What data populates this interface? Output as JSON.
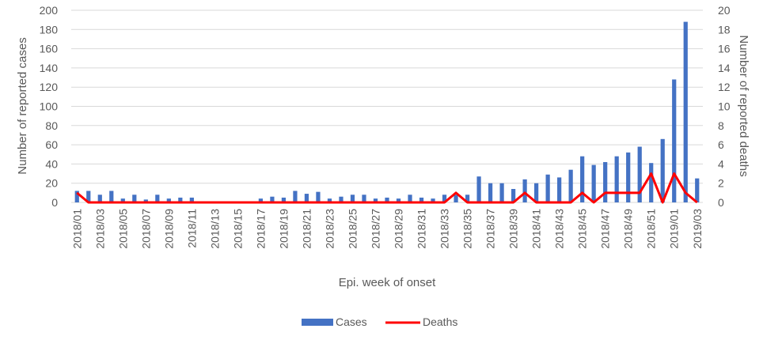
{
  "chart_data": {
    "type": "bar",
    "xlabel": "Epi. week of onset",
    "ylabel": "Number of reported cases",
    "y2label": "Number of reported deaths",
    "ylim": [
      0,
      200
    ],
    "y2lim": [
      0,
      20
    ],
    "yticks": [
      0,
      20,
      40,
      60,
      80,
      100,
      120,
      140,
      160,
      180,
      200
    ],
    "y2ticks": [
      0,
      2,
      4,
      6,
      8,
      10,
      12,
      14,
      16,
      18,
      20
    ],
    "grid": true,
    "legend": "bottom",
    "categories": [
      "2018/01",
      "2018/02",
      "2018/03",
      "2018/04",
      "2018/05",
      "2018/06",
      "2018/07",
      "2018/08",
      "2018/09",
      "2018/10",
      "2018/11",
      "2018/12",
      "2018/13",
      "2018/14",
      "2018/15",
      "2018/16",
      "2018/17",
      "2018/18",
      "2018/19",
      "2018/20",
      "2018/21",
      "2018/22",
      "2018/23",
      "2018/24",
      "2018/25",
      "2018/26",
      "2018/27",
      "2018/28",
      "2018/29",
      "2018/30",
      "2018/31",
      "2018/32",
      "2018/33",
      "2018/34",
      "2018/35",
      "2018/36",
      "2018/37",
      "2018/38",
      "2018/39",
      "2018/40",
      "2018/41",
      "2018/42",
      "2018/43",
      "2018/44",
      "2018/45",
      "2018/46",
      "2018/47",
      "2018/48",
      "2018/49",
      "2018/50",
      "2018/51",
      "2018/52",
      "2019/01",
      "2019/02",
      "2019/03"
    ],
    "tick_labels": [
      "2018/01",
      "2018/03",
      "2018/05",
      "2018/07",
      "2018/09",
      "2018/11",
      "2018/13",
      "2018/15",
      "2018/17",
      "2018/19",
      "2018/21",
      "2018/23",
      "2018/25",
      "2018/27",
      "2018/29",
      "2018/31",
      "2018/33",
      "2018/35",
      "2018/37",
      "2018/39",
      "2018/41",
      "2018/43",
      "2018/45",
      "2018/47",
      "2018/49",
      "2018/51",
      "2019/01",
      "2019/03"
    ],
    "series": [
      {
        "name": "Cases",
        "type": "bar",
        "color": "#4472C4",
        "values": [
          12,
          12,
          8,
          12,
          4,
          8,
          3,
          8,
          4,
          5,
          5,
          0,
          0,
          0,
          0,
          0,
          4,
          6,
          5,
          12,
          9,
          11,
          4,
          6,
          8,
          8,
          4,
          5,
          4,
          8,
          5,
          4,
          8,
          8,
          8,
          27,
          20,
          20,
          14,
          24,
          20,
          29,
          26,
          34,
          48,
          39,
          42,
          48,
          52,
          58,
          41,
          66,
          128,
          188,
          25
        ]
      },
      {
        "name": "Deaths",
        "type": "line",
        "color": "#FF0000",
        "values": [
          1,
          0,
          0,
          0,
          0,
          0,
          0,
          0,
          0,
          0,
          0,
          0,
          0,
          0,
          0,
          0,
          0,
          0,
          0,
          0,
          0,
          0,
          0,
          0,
          0,
          0,
          0,
          0,
          0,
          0,
          0,
          0,
          0,
          1,
          0,
          0,
          0,
          0,
          0,
          1,
          0,
          0,
          0,
          0,
          1,
          0,
          1,
          1,
          1,
          1,
          3,
          0,
          3,
          1,
          0
        ]
      }
    ]
  }
}
